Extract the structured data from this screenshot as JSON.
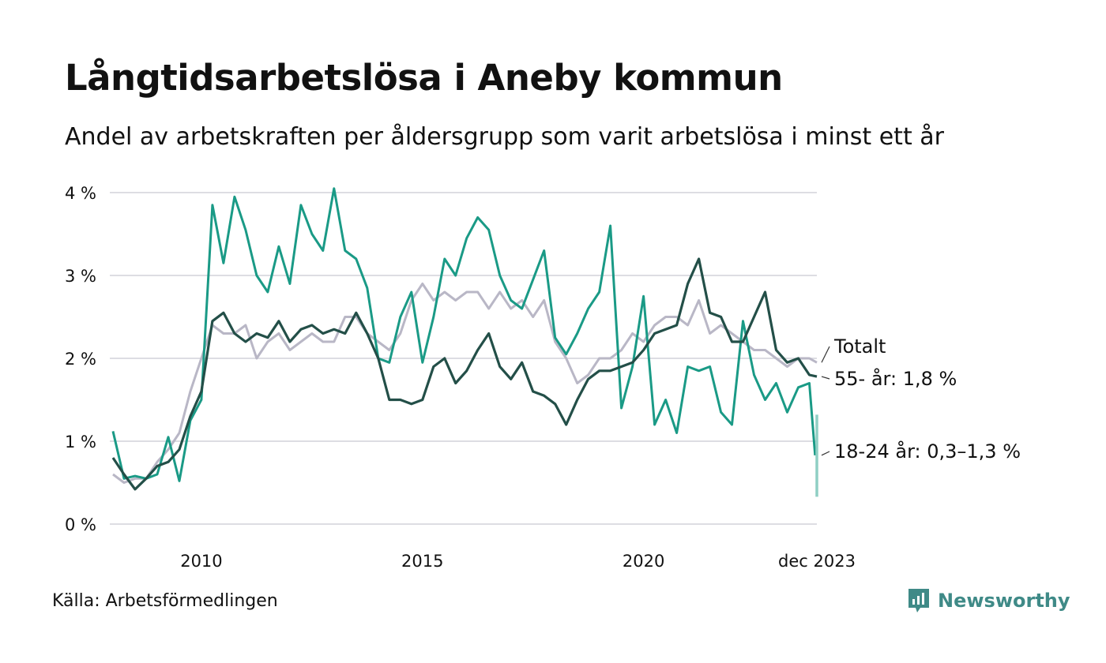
{
  "header": {
    "title": "Långtidsarbetslösa i Aneby kommun",
    "subtitle": "Andel av arbetskraften per åldersgrupp som varit arbetslösa i minst ett år"
  },
  "footer": {
    "source": "Källa: Arbetsförmedlingen",
    "brand": "Newsworthy"
  },
  "chart_data": {
    "type": "line",
    "title": "Långtidsarbetslösa i Aneby kommun",
    "subtitle": "Andel av arbetskraften per åldersgrupp som varit arbetslösa i minst ett år",
    "x_unit": "year",
    "x_range": [
      2008.0,
      2023.92
    ],
    "y_range": [
      0,
      4
    ],
    "y_ticks": [
      {
        "value": 0,
        "label": "0 %"
      },
      {
        "value": 1,
        "label": "1 %"
      },
      {
        "value": 2,
        "label": "2 %"
      },
      {
        "value": 3,
        "label": "3 %"
      },
      {
        "value": 4,
        "label": "4 %"
      }
    ],
    "x_ticks": [
      {
        "value": 2010,
        "label": "2010"
      },
      {
        "value": 2015,
        "label": "2015"
      },
      {
        "value": 2020,
        "label": "2020"
      },
      {
        "value": 2023.92,
        "label": "dec 2023"
      }
    ],
    "grid": true,
    "colors": {
      "totalt": "#b9b7c6",
      "age55": "#234f48",
      "age1824": "#1a9a86",
      "age1824_range": "#8fcfc4",
      "grid": "#dddde3",
      "brand": "#3f8a87"
    },
    "series": [
      {
        "name": "Totalt",
        "label": "Totalt",
        "x": [
          2008.0,
          2008.25,
          2008.5,
          2008.75,
          2009.0,
          2009.25,
          2009.5,
          2009.75,
          2010.0,
          2010.25,
          2010.5,
          2010.75,
          2011.0,
          2011.25,
          2011.5,
          2011.75,
          2012.0,
          2012.25,
          2012.5,
          2012.75,
          2013.0,
          2013.25,
          2013.5,
          2013.75,
          2014.0,
          2014.25,
          2014.5,
          2014.75,
          2015.0,
          2015.25,
          2015.5,
          2015.75,
          2016.0,
          2016.25,
          2016.5,
          2016.75,
          2017.0,
          2017.25,
          2017.5,
          2017.75,
          2018.0,
          2018.25,
          2018.5,
          2018.75,
          2019.0,
          2019.25,
          2019.5,
          2019.75,
          2020.0,
          2020.25,
          2020.5,
          2020.75,
          2021.0,
          2021.25,
          2021.5,
          2021.75,
          2022.0,
          2022.25,
          2022.5,
          2022.75,
          2023.0,
          2023.25,
          2023.5,
          2023.75,
          2023.92
        ],
        "values": [
          0.6,
          0.5,
          0.55,
          0.55,
          0.75,
          0.9,
          1.1,
          1.6,
          2.0,
          2.4,
          2.3,
          2.3,
          2.4,
          2.0,
          2.2,
          2.3,
          2.1,
          2.2,
          2.3,
          2.2,
          2.2,
          2.5,
          2.5,
          2.3,
          2.2,
          2.1,
          2.3,
          2.7,
          2.9,
          2.7,
          2.8,
          2.7,
          2.8,
          2.8,
          2.6,
          2.8,
          2.6,
          2.7,
          2.5,
          2.7,
          2.2,
          2.0,
          1.7,
          1.8,
          2.0,
          2.0,
          2.1,
          2.3,
          2.2,
          2.4,
          2.5,
          2.5,
          2.4,
          2.7,
          2.3,
          2.4,
          2.3,
          2.2,
          2.1,
          2.1,
          2.0,
          1.9,
          2.0,
          2.0,
          1.95
        ]
      },
      {
        "name": "55- år",
        "label": "55- år: 1,8 %",
        "x": [
          2008.0,
          2008.25,
          2008.5,
          2008.75,
          2009.0,
          2009.25,
          2009.5,
          2009.75,
          2010.0,
          2010.25,
          2010.5,
          2010.75,
          2011.0,
          2011.25,
          2011.5,
          2011.75,
          2012.0,
          2012.25,
          2012.5,
          2012.75,
          2013.0,
          2013.25,
          2013.5,
          2013.75,
          2014.0,
          2014.25,
          2014.5,
          2014.75,
          2015.0,
          2015.25,
          2015.5,
          2015.75,
          2016.0,
          2016.25,
          2016.5,
          2016.75,
          2017.0,
          2017.25,
          2017.5,
          2017.75,
          2018.0,
          2018.25,
          2018.5,
          2018.75,
          2019.0,
          2019.25,
          2019.5,
          2019.75,
          2020.0,
          2020.25,
          2020.5,
          2020.75,
          2021.0,
          2021.25,
          2021.5,
          2021.75,
          2022.0,
          2022.25,
          2022.5,
          2022.75,
          2023.0,
          2023.25,
          2023.5,
          2023.75,
          2023.92
        ],
        "values": [
          0.8,
          0.6,
          0.42,
          0.55,
          0.7,
          0.75,
          0.9,
          1.3,
          1.6,
          2.45,
          2.55,
          2.3,
          2.2,
          2.3,
          2.25,
          2.45,
          2.2,
          2.35,
          2.4,
          2.3,
          2.35,
          2.3,
          2.55,
          2.3,
          2.0,
          1.5,
          1.5,
          1.45,
          1.5,
          1.9,
          2.0,
          1.7,
          1.85,
          2.1,
          2.3,
          1.9,
          1.75,
          1.95,
          1.6,
          1.55,
          1.45,
          1.2,
          1.5,
          1.75,
          1.85,
          1.85,
          1.9,
          1.95,
          2.1,
          2.3,
          2.35,
          2.4,
          2.9,
          3.2,
          2.55,
          2.5,
          2.2,
          2.2,
          2.5,
          2.8,
          2.1,
          1.95,
          2.0,
          1.8,
          1.78
        ]
      },
      {
        "name": "18-24 år",
        "label": "18-24 år: 0,3–1,3 %",
        "range_low": 0.33,
        "range_high": 1.32,
        "x": [
          2008.0,
          2008.25,
          2008.5,
          2008.75,
          2009.0,
          2009.25,
          2009.5,
          2009.75,
          2010.0,
          2010.25,
          2010.5,
          2010.75,
          2011.0,
          2011.25,
          2011.5,
          2011.75,
          2012.0,
          2012.25,
          2012.5,
          2012.75,
          2013.0,
          2013.25,
          2013.5,
          2013.75,
          2014.0,
          2014.25,
          2014.5,
          2014.75,
          2015.0,
          2015.25,
          2015.5,
          2015.75,
          2016.0,
          2016.25,
          2016.5,
          2016.75,
          2017.0,
          2017.25,
          2017.5,
          2017.75,
          2018.0,
          2018.25,
          2018.5,
          2018.75,
          2019.0,
          2019.25,
          2019.5,
          2019.75,
          2020.0,
          2020.25,
          2020.5,
          2020.75,
          2021.0,
          2021.25,
          2021.5,
          2021.75,
          2022.0,
          2022.25,
          2022.5,
          2022.75,
          2023.0,
          2023.25,
          2023.5,
          2023.75,
          2023.88
        ],
        "values": [
          1.12,
          0.55,
          0.58,
          0.55,
          0.6,
          1.05,
          0.52,
          1.25,
          1.5,
          3.85,
          3.15,
          3.95,
          3.55,
          3.0,
          2.8,
          3.35,
          2.9,
          3.85,
          3.5,
          3.3,
          4.05,
          3.3,
          3.2,
          2.85,
          2.0,
          1.95,
          2.5,
          2.8,
          1.95,
          2.5,
          3.2,
          3.0,
          3.45,
          3.7,
          3.55,
          3.0,
          2.7,
          2.6,
          2.95,
          3.3,
          2.25,
          2.05,
          2.3,
          2.6,
          2.8,
          3.6,
          1.4,
          1.9,
          2.75,
          1.2,
          1.5,
          1.1,
          1.9,
          1.85,
          1.9,
          1.35,
          1.2,
          2.45,
          1.8,
          1.5,
          1.7,
          1.35,
          1.65,
          1.7,
          0.83
        ]
      }
    ]
  }
}
